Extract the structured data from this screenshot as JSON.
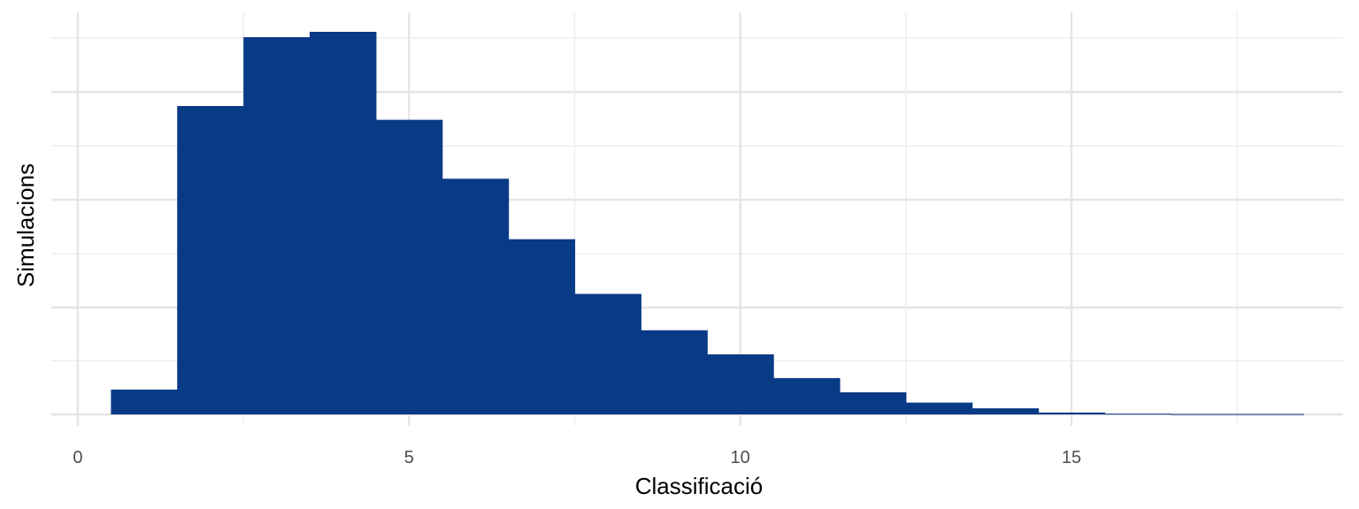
{
  "chart_data": {
    "type": "bar",
    "subtype": "histogram",
    "xlabel": "Classificació",
    "ylabel": "Simulacions",
    "xlim": [
      -0.4,
      19.1
    ],
    "ylim": [
      0,
      1.0
    ],
    "x_ticks": [
      0,
      5,
      10,
      15
    ],
    "x_tick_labels": [
      "0",
      "5",
      "10",
      "15"
    ],
    "y_tick_labels_visible": false,
    "grid": true,
    "bar_color": "#093A86",
    "bin_width": 1,
    "bins": [
      {
        "x": 1,
        "value": 0.065
      },
      {
        "x": 2,
        "value": 0.806
      },
      {
        "x": 3,
        "value": 0.986
      },
      {
        "x": 4,
        "value": 1.0
      },
      {
        "x": 5,
        "value": 0.77
      },
      {
        "x": 6,
        "value": 0.616
      },
      {
        "x": 7,
        "value": 0.458
      },
      {
        "x": 8,
        "value": 0.315
      },
      {
        "x": 9,
        "value": 0.22
      },
      {
        "x": 10,
        "value": 0.157
      },
      {
        "x": 11,
        "value": 0.095
      },
      {
        "x": 12,
        "value": 0.058
      },
      {
        "x": 13,
        "value": 0.031
      },
      {
        "x": 14,
        "value": 0.016
      },
      {
        "x": 15,
        "value": 0.005
      },
      {
        "x": 16,
        "value": 0.002
      },
      {
        "x": 17,
        "value": 0.001
      },
      {
        "x": 18,
        "value": 0.001
      }
    ]
  }
}
